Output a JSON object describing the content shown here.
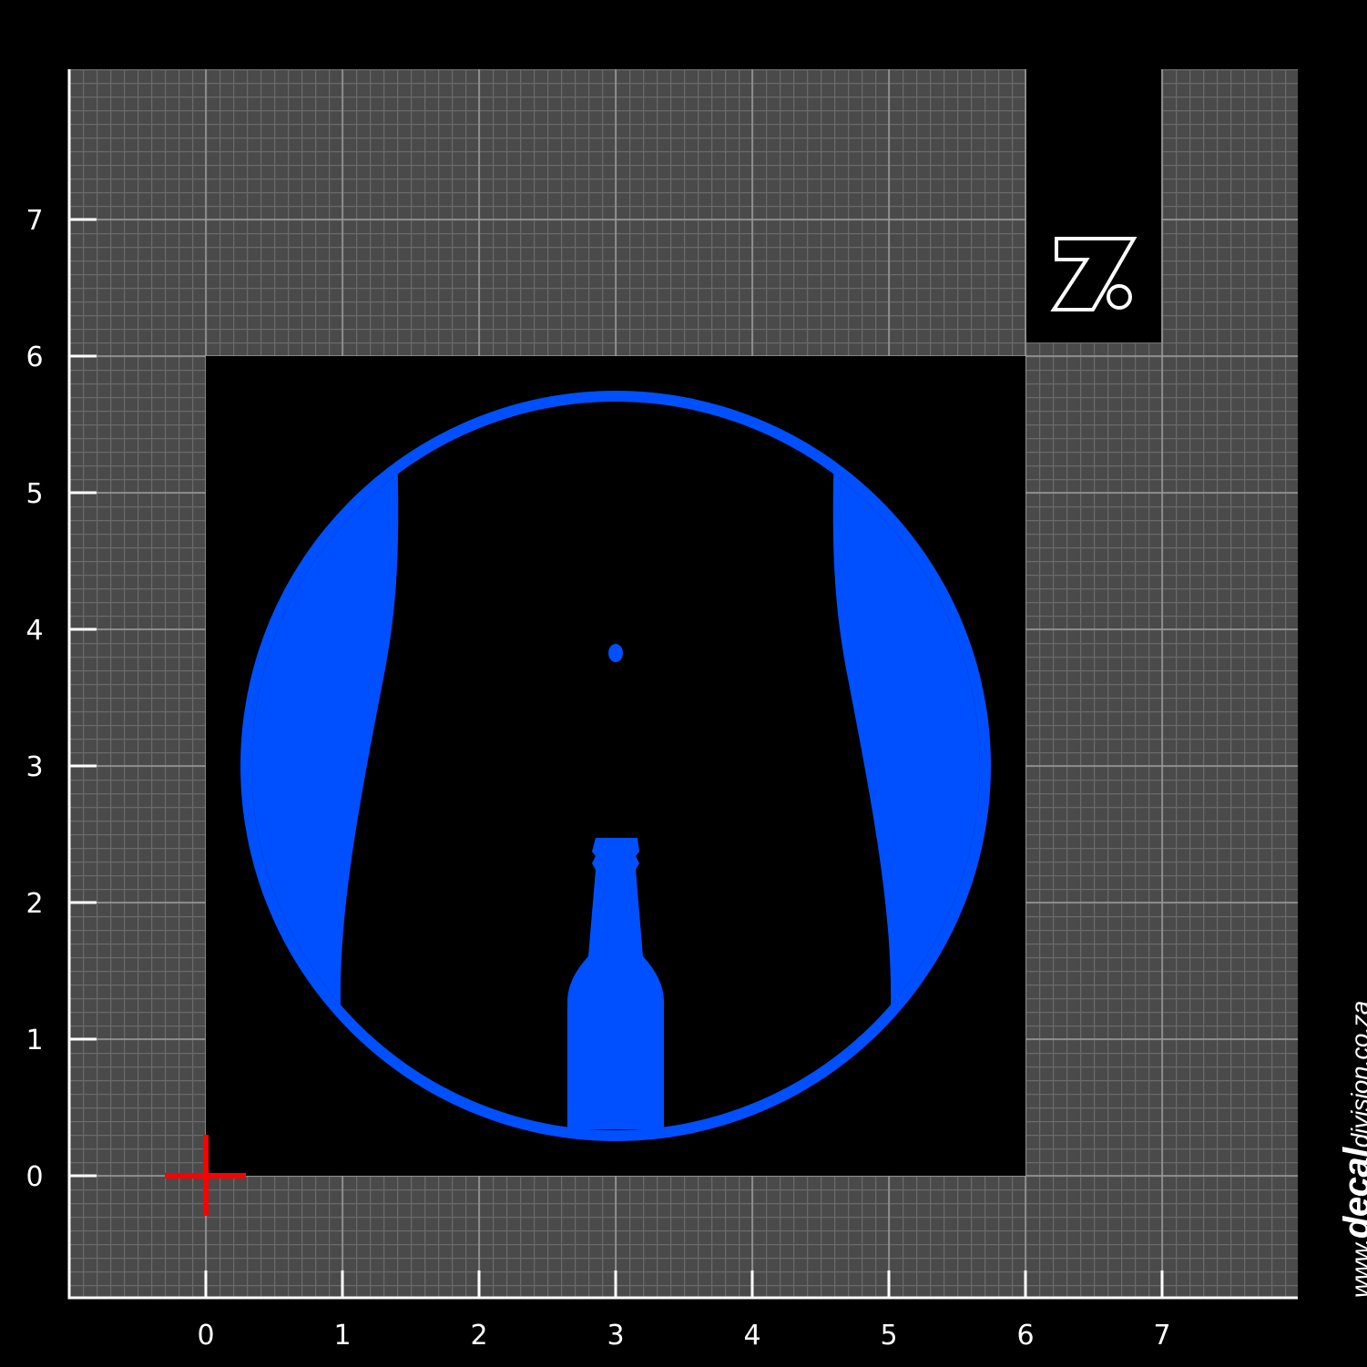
{
  "axes": {
    "x_ticks": [
      "0",
      "1",
      "2",
      "3",
      "4",
      "5",
      "6",
      "7"
    ],
    "y_ticks": [
      "0",
      "1",
      "2",
      "3",
      "4",
      "5",
      "6",
      "7"
    ]
  },
  "logo": {
    "text": "7%",
    "color": "#ffffff"
  },
  "watermark": {
    "prefix": "www.",
    "brand": "decal",
    "middle": "division",
    "suffix": ".co.za"
  },
  "colors": {
    "background": "#000000",
    "grid": "#4a4a4a",
    "gridline": "#6a6a6a",
    "design_accent": "#0050ff",
    "origin_marker": "#ff0000"
  },
  "design": {
    "icons": [
      "body-silhouette-icon",
      "beer-bottle-icon",
      "navel-dot"
    ]
  }
}
